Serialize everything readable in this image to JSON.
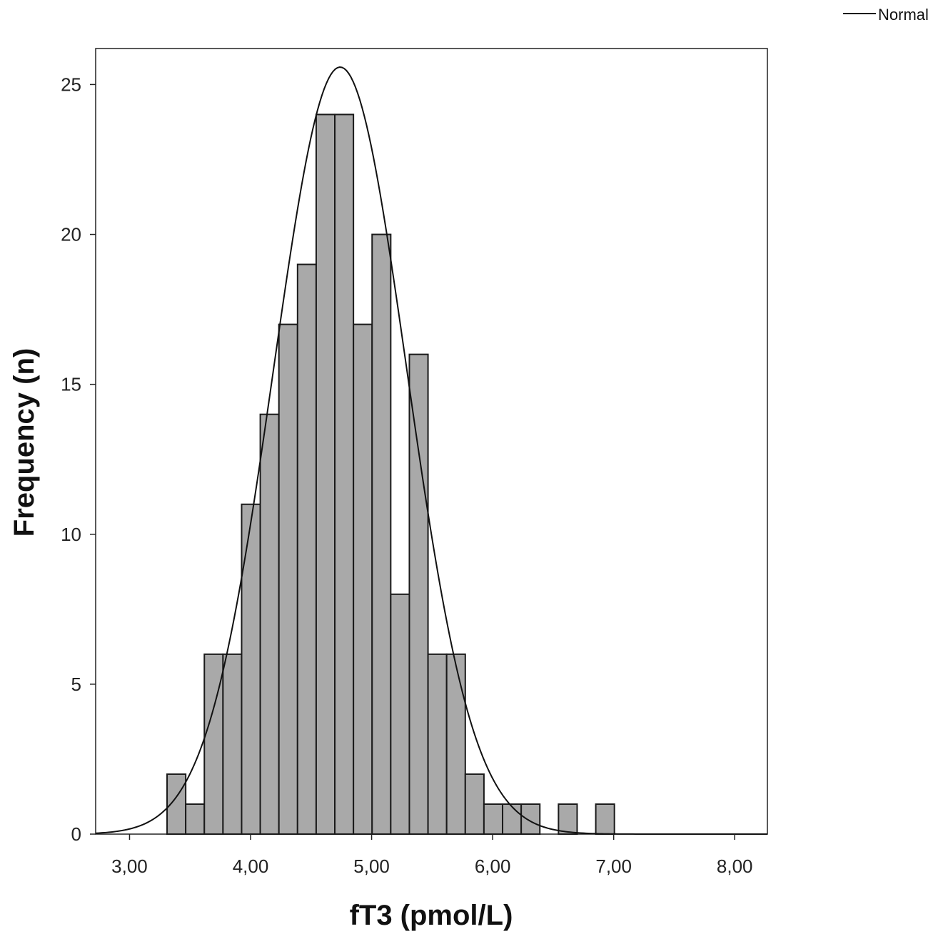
{
  "chart_data": {
    "type": "bar",
    "subtype": "histogram",
    "xlabel": "fT3 (pmol/L)",
    "ylabel": "Frequency (n)",
    "xlim": [
      2.72,
      8.27
    ],
    "ylim": [
      0,
      26.2
    ],
    "x_ticks": [
      3,
      4,
      5,
      6,
      7,
      8
    ],
    "x_tick_labels": [
      "3,00",
      "4,00",
      "5,00",
      "6,00",
      "7,00",
      "8,00"
    ],
    "y_ticks": [
      0,
      5,
      10,
      15,
      20,
      25
    ],
    "y_tick_labels": [
      "0",
      "5",
      "10",
      "15",
      "20",
      "25"
    ],
    "bin_width": 0.154,
    "bin_start": 3.31,
    "counts": [
      2,
      1,
      6,
      6,
      11,
      14,
      17,
      19,
      24,
      24,
      17,
      20,
      8,
      16,
      6,
      6,
      2,
      1,
      1,
      1,
      0,
      1,
      0,
      1
    ],
    "normal_curve": {
      "mean": 4.74,
      "sd": 0.55,
      "n": 229
    },
    "legend": {
      "entries": [
        "Normal"
      ],
      "position": "top-right"
    },
    "bar_color": "#a9a9a9",
    "grid": false
  }
}
